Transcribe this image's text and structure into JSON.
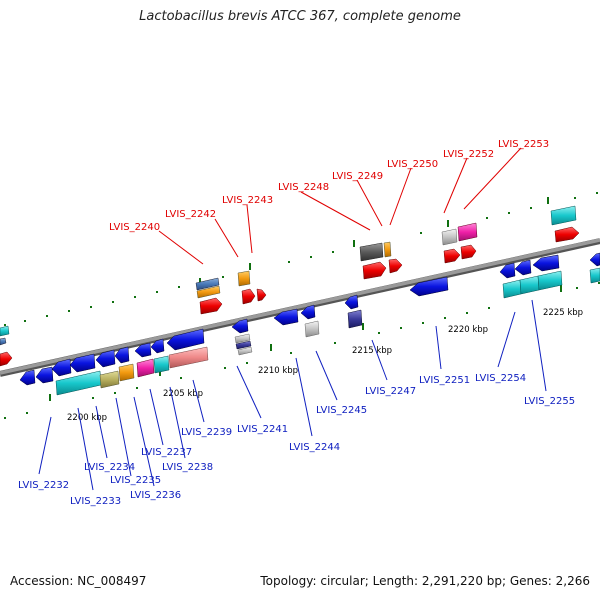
{
  "title": "Lactobacillus brevis ATCC 367, complete genome",
  "footer": {
    "accession": "Accession: NC_008497",
    "topology": "Topology: circular; Length: 2,291,220 bp; Genes: 2,266"
  },
  "colors": {
    "backbone": "#808080",
    "top_label": "#e00000",
    "bottom_label": "#1020c0",
    "tick": "#107010"
  },
  "kbp_labels": [
    "2200 kbp",
    "2205 kbp",
    "2210 kbp",
    "2215 kbp",
    "2220 kbp",
    "2225 kbp"
  ],
  "top_labels": [
    "LVIS_2240",
    "LVIS_2242",
    "LVIS_2243",
    "LVIS_2248",
    "LVIS_2249",
    "LVIS_2250",
    "LVIS_2252",
    "LVIS_2253"
  ],
  "bottom_labels": [
    "LVIS_2232",
    "LVIS_2233",
    "LVIS_2234",
    "LVIS_2235",
    "LVIS_2236",
    "LVIS_2237",
    "LVIS_2238",
    "LVIS_2239",
    "LVIS_2241",
    "LVIS_2244",
    "LVIS_2245",
    "LVIS_2247",
    "LVIS_2251",
    "LVIS_2254",
    "LVIS_2255"
  ]
}
